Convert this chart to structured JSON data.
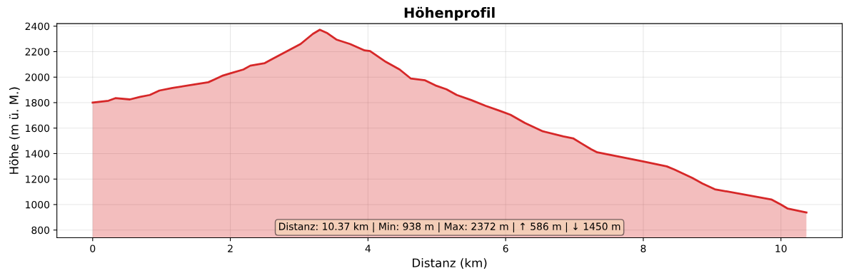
{
  "chart_data": {
    "type": "area",
    "title": "Höhenprofil",
    "xlabel": "Distanz (km)",
    "ylabel": "Höhe (m ü. M.)",
    "x": [
      0,
      0.23,
      0.33,
      0.54,
      0.69,
      0.83,
      0.97,
      1.16,
      1.5,
      1.68,
      1.78,
      1.88,
      2.0,
      2.19,
      2.29,
      2.5,
      2.6,
      2.81,
      3.02,
      3.2,
      3.3,
      3.41,
      3.54,
      3.74,
      3.95,
      4.03,
      4.26,
      4.46,
      4.62,
      4.83,
      4.98,
      5.14,
      5.29,
      5.5,
      5.71,
      5.92,
      6.07,
      6.28,
      6.54,
      6.84,
      6.98,
      7.1,
      7.24,
      7.33,
      7.98,
      8.34,
      8.45,
      8.71,
      8.86,
      9.04,
      9.86,
      10.0,
      10.1,
      10.37
    ],
    "series": [
      {
        "color": "#d62728",
        "values": [
          1800,
          1815,
          1835,
          1825,
          1845,
          1860,
          1895,
          1915,
          1945,
          1960,
          1985,
          2010,
          2030,
          2060,
          2090,
          2110,
          2140,
          2200,
          2260,
          2340,
          2372,
          2345,
          2295,
          2260,
          2210,
          2205,
          2120,
          2060,
          1990,
          1975,
          1935,
          1905,
          1860,
          1820,
          1775,
          1735,
          1705,
          1640,
          1575,
          1535,
          1520,
          1480,
          1435,
          1410,
          1340,
          1300,
          1275,
          1210,
          1165,
          1120,
          1040,
          1000,
          968,
          938
        ]
      }
    ],
    "xlim": [
      -0.52,
      10.89
    ],
    "xticks": [
      0,
      2,
      4,
      6,
      8,
      10
    ],
    "ylim": [
      740,
      2420
    ],
    "yticks": [
      800,
      1000,
      1200,
      1400,
      1600,
      1800,
      2000,
      2200,
      2400
    ],
    "grid": true,
    "annotations": [
      "Distanz: 10.37 km | Min: 938 m | Max: 2372 m | ↑ 586 m | ↓ 1450 m"
    ]
  }
}
